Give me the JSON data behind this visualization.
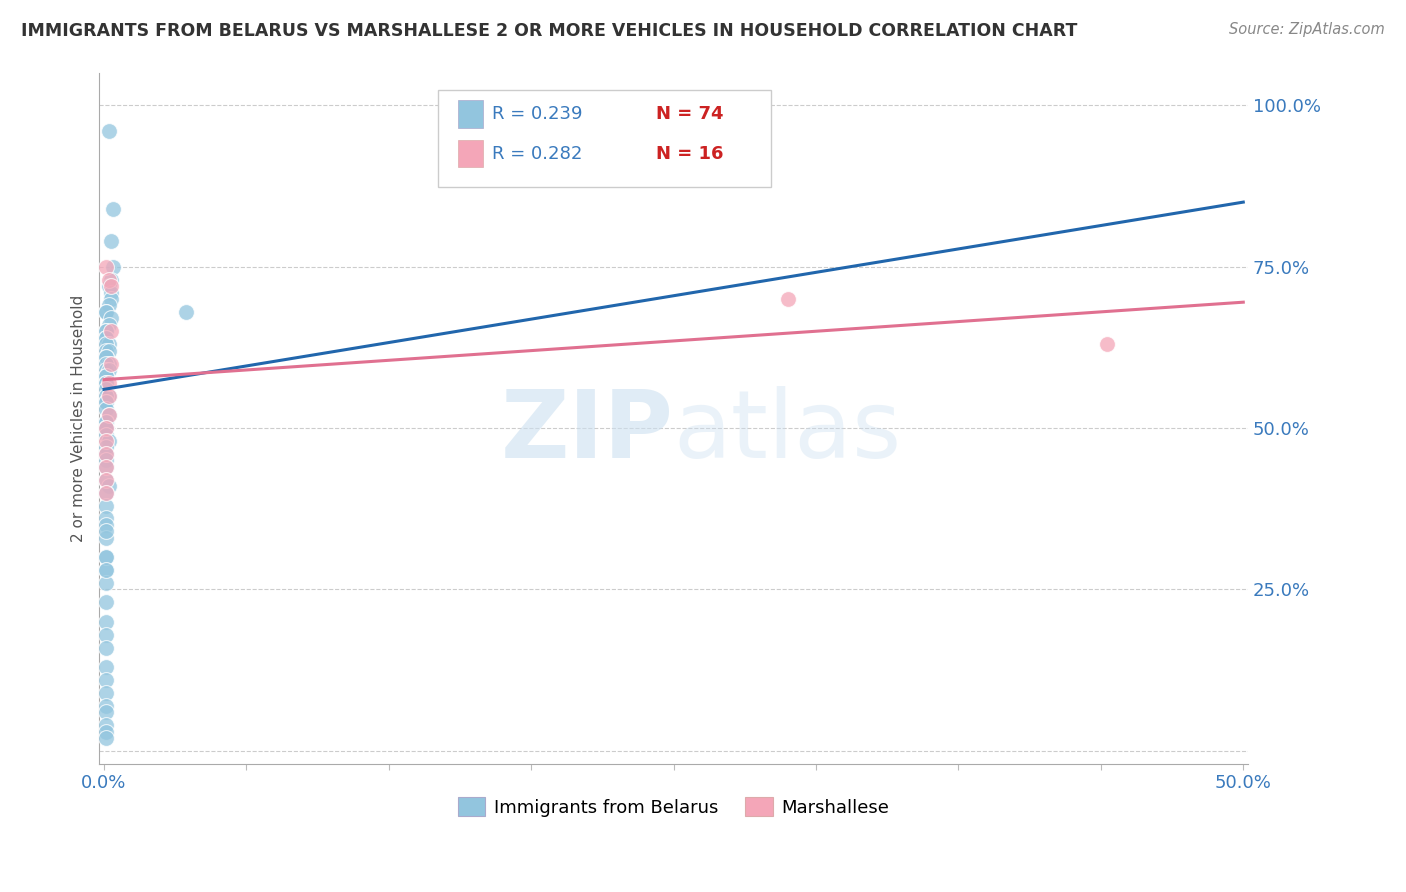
{
  "title": "IMMIGRANTS FROM BELARUS VS MARSHALLESE 2 OR MORE VEHICLES IN HOUSEHOLD CORRELATION CHART",
  "source": "Source: ZipAtlas.com",
  "ylabel": "2 or more Vehicles in Household",
  "ytick_labels": [
    "",
    "25.0%",
    "50.0%",
    "75.0%",
    "100.0%"
  ],
  "legend_blue_r": "R = 0.239",
  "legend_blue_n": "N = 74",
  "legend_pink_r": "R = 0.282",
  "legend_pink_n": "N = 16",
  "legend_blue_label": "Immigrants from Belarus",
  "legend_pink_label": "Marshallese",
  "blue_color": "#92c5de",
  "pink_color": "#f4a6b8",
  "blue_line_color": "#2166ac",
  "pink_line_color": "#e07090",
  "blue_scatter_x": [
    0.002,
    0.004,
    0.003,
    0.004,
    0.003,
    0.002,
    0.003,
    0.003,
    0.002,
    0.001,
    0.001,
    0.003,
    0.002,
    0.001,
    0.001,
    0.001,
    0.001,
    0.002,
    0.001,
    0.001,
    0.002,
    0.001,
    0.001,
    0.002,
    0.001,
    0.001,
    0.002,
    0.001,
    0.001,
    0.001,
    0.001,
    0.001,
    0.002,
    0.001,
    0.001,
    0.001,
    0.001,
    0.002,
    0.001,
    0.001,
    0.001,
    0.001,
    0.001,
    0.002,
    0.001,
    0.001,
    0.001,
    0.001,
    0.001,
    0.002,
    0.001,
    0.001,
    0.001,
    0.001,
    0.001,
    0.001,
    0.001,
    0.001,
    0.001,
    0.001,
    0.001,
    0.001,
    0.001,
    0.001,
    0.001,
    0.001,
    0.001,
    0.001,
    0.001,
    0.001,
    0.036,
    0.001,
    0.001,
    0.001
  ],
  "blue_scatter_y": [
    0.96,
    0.84,
    0.79,
    0.75,
    0.73,
    0.72,
    0.71,
    0.7,
    0.69,
    0.68,
    0.68,
    0.67,
    0.66,
    0.65,
    0.65,
    0.64,
    0.64,
    0.63,
    0.63,
    0.62,
    0.62,
    0.61,
    0.61,
    0.6,
    0.6,
    0.59,
    0.59,
    0.58,
    0.58,
    0.57,
    0.57,
    0.56,
    0.55,
    0.55,
    0.54,
    0.54,
    0.53,
    0.52,
    0.51,
    0.51,
    0.5,
    0.5,
    0.49,
    0.48,
    0.47,
    0.46,
    0.45,
    0.44,
    0.42,
    0.41,
    0.4,
    0.38,
    0.36,
    0.35,
    0.33,
    0.3,
    0.28,
    0.26,
    0.23,
    0.2,
    0.18,
    0.16,
    0.13,
    0.11,
    0.09,
    0.07,
    0.06,
    0.04,
    0.03,
    0.02,
    0.68,
    0.34,
    0.3,
    0.28
  ],
  "pink_scatter_x": [
    0.001,
    0.002,
    0.003,
    0.003,
    0.003,
    0.002,
    0.002,
    0.002,
    0.001,
    0.001,
    0.001,
    0.001,
    0.3,
    0.44,
    0.001,
    0.001
  ],
  "pink_scatter_y": [
    0.75,
    0.73,
    0.72,
    0.65,
    0.6,
    0.57,
    0.55,
    0.52,
    0.5,
    0.48,
    0.46,
    0.44,
    0.7,
    0.63,
    0.42,
    0.4
  ],
  "blue_line_x": [
    0.0,
    0.5
  ],
  "blue_line_y": [
    0.56,
    0.85
  ],
  "pink_line_x": [
    0.0,
    0.5
  ],
  "pink_line_y": [
    0.575,
    0.695
  ],
  "watermark_zip": "ZIP",
  "watermark_atlas": "atlas",
  "background_color": "#ffffff",
  "xlim": [
    -0.002,
    0.502
  ],
  "ylim": [
    -0.02,
    1.05
  ],
  "ytick_vals": [
    0.0,
    0.25,
    0.5,
    0.75,
    1.0
  ]
}
